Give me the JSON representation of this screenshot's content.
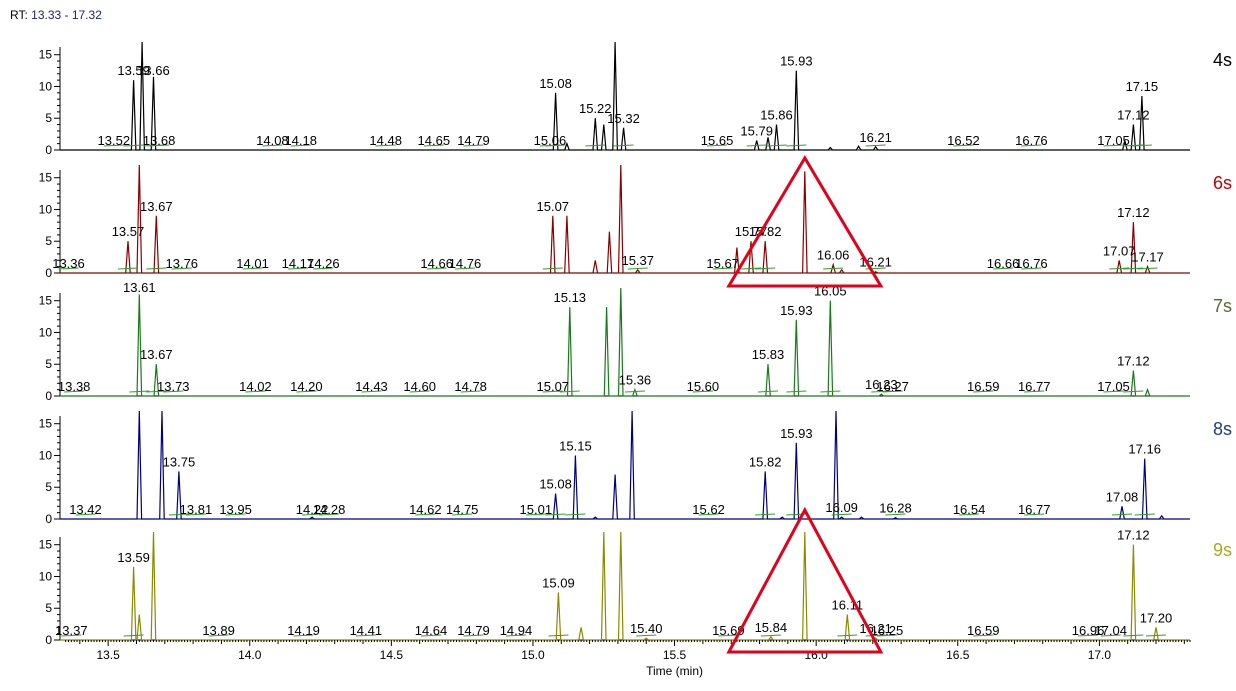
{
  "header": {
    "rt_label": "RT:",
    "rt_range": "13.33 - 17.32"
  },
  "chart_data": {
    "type": "line",
    "xlabel": "Time (min)",
    "xlim": [
      13.33,
      17.32
    ],
    "x_ticks": [
      "13.5",
      "14.0",
      "14.5",
      "15.0",
      "15.5",
      "16.0",
      "16.5",
      "17.0"
    ],
    "ylim": [
      0,
      17
    ],
    "y_ticks": [
      "0",
      "5",
      "10",
      "15"
    ],
    "highlight_triangles": [
      {
        "panel": "6s",
        "color": "#e3001b"
      },
      {
        "panel": "9s",
        "color": "#e3001b"
      }
    ],
    "series": [
      {
        "name": "4s",
        "color": "#000000",
        "label_color": "#000000",
        "peaks": [
          [
            13.59,
            11
          ],
          [
            13.62,
            20
          ],
          [
            13.66,
            11.5
          ],
          [
            15.08,
            9
          ],
          [
            15.12,
            1
          ],
          [
            15.22,
            5
          ],
          [
            15.25,
            4
          ],
          [
            15.29,
            20
          ],
          [
            15.32,
            3.5
          ],
          [
            15.79,
            1.5
          ],
          [
            15.83,
            2
          ],
          [
            15.86,
            4
          ],
          [
            15.93,
            12.5
          ],
          [
            16.05,
            0.4
          ],
          [
            16.15,
            0.6
          ],
          [
            16.21,
            0.5
          ],
          [
            17.09,
            1.5
          ],
          [
            17.12,
            4
          ],
          [
            17.15,
            8.5
          ]
        ],
        "labels": [
          [
            "13.59",
            11
          ],
          [
            "13.66",
            11
          ],
          [
            "13.52",
            0
          ],
          [
            "13.68",
            0
          ],
          [
            "14.08",
            0
          ],
          [
            "14.18",
            0
          ],
          [
            "14.48",
            0
          ],
          [
            "14.65",
            0
          ],
          [
            "14.79",
            0
          ],
          [
            "15.06",
            0
          ],
          [
            "15.08",
            9
          ],
          [
            "15.22",
            5
          ],
          [
            "15.32",
            3.5
          ],
          [
            "15.65",
            0
          ],
          [
            "15.79",
            1.5
          ],
          [
            "15.86",
            4
          ],
          [
            "15.93",
            12.5
          ],
          [
            "16.21",
            0.5
          ],
          [
            "16.52",
            0
          ],
          [
            "16.76",
            0
          ],
          [
            "17.05",
            0
          ],
          [
            "17.12",
            4
          ],
          [
            "17.15",
            8.5
          ]
        ]
      },
      {
        "name": "6s",
        "color": "#8b0000",
        "label_color": "#c00000",
        "peaks": [
          [
            13.57,
            5
          ],
          [
            13.61,
            20
          ],
          [
            13.67,
            9
          ],
          [
            15.07,
            9
          ],
          [
            15.12,
            9
          ],
          [
            15.22,
            2
          ],
          [
            15.27,
            6.5
          ],
          [
            15.31,
            20
          ],
          [
            15.37,
            0.5
          ],
          [
            15.72,
            4
          ],
          [
            15.77,
            5
          ],
          [
            15.82,
            5
          ],
          [
            15.96,
            16
          ],
          [
            16.06,
            1.3
          ],
          [
            16.09,
            0.5
          ],
          [
            16.21,
            0.2
          ],
          [
            17.07,
            2
          ],
          [
            17.12,
            8
          ],
          [
            17.17,
            1
          ]
        ],
        "labels": [
          [
            "13.36",
            0
          ],
          [
            "13.57",
            5
          ],
          [
            "13.67",
            9
          ],
          [
            "13.76",
            0
          ],
          [
            "14.01",
            0
          ],
          [
            "14.17",
            0
          ],
          [
            "14.26",
            0
          ],
          [
            "14.66",
            0
          ],
          [
            "14.76",
            0
          ],
          [
            "15.07",
            9
          ],
          [
            "15.37",
            0.5
          ],
          [
            "15.67",
            0
          ],
          [
            "15.77",
            5
          ],
          [
            "15.82",
            5
          ],
          [
            "16.06",
            1.3
          ],
          [
            "16.21",
            0.2
          ],
          [
            "16.66",
            0
          ],
          [
            "16.76",
            0
          ],
          [
            "17.07",
            2
          ],
          [
            "17.12",
            8
          ],
          [
            "17.17",
            1
          ]
        ]
      },
      {
        "name": "7s",
        "color": "#1a7a1a",
        "label_color": "#556b2f",
        "peaks": [
          [
            13.61,
            16
          ],
          [
            13.67,
            5
          ],
          [
            15.13,
            14
          ],
          [
            15.26,
            14
          ],
          [
            15.31,
            20
          ],
          [
            15.36,
            1
          ],
          [
            15.83,
            5
          ],
          [
            15.93,
            12
          ],
          [
            16.05,
            15
          ],
          [
            16.23,
            0.3
          ],
          [
            17.12,
            4
          ],
          [
            17.17,
            1
          ]
        ],
        "labels": [
          [
            "13.38",
            0
          ],
          [
            "13.61",
            16
          ],
          [
            "13.67",
            5
          ],
          [
            "13.73",
            0
          ],
          [
            "14.02",
            0
          ],
          [
            "14.20",
            0
          ],
          [
            "14.43",
            0
          ],
          [
            "14.60",
            0
          ],
          [
            "14.78",
            0
          ],
          [
            "15.07",
            0
          ],
          [
            "15.13",
            14
          ],
          [
            "15.36",
            1
          ],
          [
            "15.60",
            0
          ],
          [
            "15.83",
            5
          ],
          [
            "15.93",
            12
          ],
          [
            "16.05",
            15
          ],
          [
            "16.23",
            0.3
          ],
          [
            "16.27",
            0
          ],
          [
            "16.59",
            0
          ],
          [
            "16.77",
            0
          ],
          [
            "17.05",
            0
          ],
          [
            "17.12",
            4
          ]
        ]
      },
      {
        "name": "8s",
        "color": "#000080",
        "label_color": "#1f3c88",
        "peaks": [
          [
            13.61,
            20
          ],
          [
            13.69,
            20
          ],
          [
            13.75,
            7.5
          ],
          [
            14.22,
            0.3
          ],
          [
            15.08,
            4
          ],
          [
            15.15,
            10
          ],
          [
            15.22,
            0.3
          ],
          [
            15.29,
            7
          ],
          [
            15.35,
            20
          ],
          [
            15.82,
            7.5
          ],
          [
            15.88,
            0.3
          ],
          [
            15.93,
            12
          ],
          [
            16.07,
            20
          ],
          [
            16.09,
            0.3
          ],
          [
            16.16,
            0.3
          ],
          [
            16.28,
            0.2
          ],
          [
            17.08,
            2
          ],
          [
            17.16,
            9.5
          ],
          [
            17.22,
            0.5
          ]
        ],
        "labels": [
          [
            "13.42",
            0
          ],
          [
            "13.75",
            7.5
          ],
          [
            "13.81",
            0
          ],
          [
            "13.95",
            0
          ],
          [
            "14.22",
            0
          ],
          [
            "14.28",
            0
          ],
          [
            "14.62",
            0
          ],
          [
            "14.75",
            0
          ],
          [
            "15.01",
            0
          ],
          [
            "15.08",
            4
          ],
          [
            "15.15",
            10
          ],
          [
            "15.62",
            0
          ],
          [
            "15.82",
            7.5
          ],
          [
            "15.93",
            12
          ],
          [
            "16.09",
            0.3
          ],
          [
            "16.28",
            0.2
          ],
          [
            "16.54",
            0
          ],
          [
            "16.77",
            0
          ],
          [
            "17.08",
            2
          ],
          [
            "17.16",
            9.5
          ]
        ]
      },
      {
        "name": "9s",
        "color": "#8b8b00",
        "label_color": "#a3b01e",
        "peaks": [
          [
            13.59,
            11.5
          ],
          [
            13.61,
            4
          ],
          [
            13.66,
            20
          ],
          [
            15.09,
            7.5
          ],
          [
            15.17,
            2
          ],
          [
            15.25,
            20
          ],
          [
            15.31,
            20
          ],
          [
            15.4,
            0.3
          ],
          [
            15.84,
            0.5
          ],
          [
            15.96,
            20
          ],
          [
            16.11,
            4
          ],
          [
            16.21,
            0.3
          ],
          [
            17.12,
            15
          ],
          [
            17.2,
            2
          ]
        ],
        "labels": [
          [
            "13.37",
            0
          ],
          [
            "13.59",
            11.5
          ],
          [
            "13.89",
            0
          ],
          [
            "14.19",
            0
          ],
          [
            "14.41",
            0
          ],
          [
            "14.64",
            0
          ],
          [
            "14.79",
            0
          ],
          [
            "14.94",
            0
          ],
          [
            "15.09",
            7.5
          ],
          [
            "15.40",
            0.3
          ],
          [
            "15.69",
            0
          ],
          [
            "15.84",
            0.5
          ],
          [
            "16.11",
            4
          ],
          [
            "16.21",
            0.3
          ],
          [
            "16.25",
            0
          ],
          [
            "16.59",
            0
          ],
          [
            "16.96",
            0
          ],
          [
            "17.04",
            0
          ],
          [
            "17.12",
            15
          ],
          [
            "17.20",
            2
          ]
        ]
      }
    ]
  }
}
